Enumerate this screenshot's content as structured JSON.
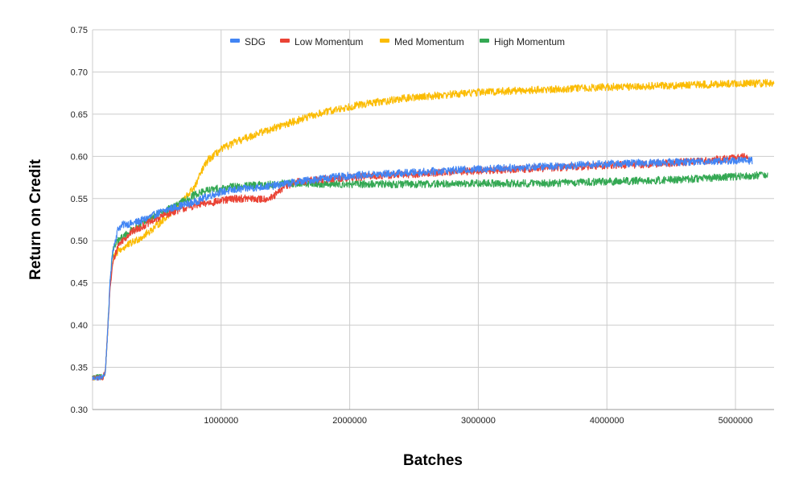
{
  "chart_data": {
    "type": "line",
    "xlabel": "Batches",
    "ylabel": "Return on Credit",
    "xlim": [
      0,
      5300000
    ],
    "ylim": [
      0.3,
      0.75
    ],
    "x_ticks": [
      1000000,
      2000000,
      3000000,
      4000000,
      5000000
    ],
    "x_tick_labels": [
      "1000000",
      "2000000",
      "3000000",
      "4000000",
      "5000000"
    ],
    "y_ticks": [
      0.3,
      0.35,
      0.4,
      0.45,
      0.5,
      0.55,
      0.6,
      0.65,
      0.7,
      0.75
    ],
    "y_tick_labels": [
      "0.30",
      "0.35",
      "0.40",
      "0.45",
      "0.50",
      "0.55",
      "0.60",
      "0.65",
      "0.70",
      "0.75"
    ],
    "grid": true,
    "legend_position": "top-center",
    "series": [
      {
        "name": "SDG",
        "color": "#4285f4",
        "x": [
          0,
          80000,
          100000,
          120000,
          140000,
          160000,
          200000,
          250000,
          300000,
          400000,
          500000,
          600000,
          700000,
          800000,
          900000,
          1000000,
          1200000,
          1400000,
          1600000,
          1800000,
          2000000,
          2500000,
          3000000,
          3500000,
          4000000,
          4500000,
          5000000,
          5130000
        ],
        "y": [
          0.337,
          0.338,
          0.345,
          0.4,
          0.46,
          0.49,
          0.515,
          0.52,
          0.52,
          0.525,
          0.532,
          0.538,
          0.542,
          0.546,
          0.553,
          0.558,
          0.562,
          0.565,
          0.57,
          0.574,
          0.577,
          0.581,
          0.585,
          0.588,
          0.591,
          0.593,
          0.595,
          0.595
        ]
      },
      {
        "name": "Low Momentum",
        "color": "#ea4335",
        "x": [
          0,
          80000,
          100000,
          120000,
          140000,
          160000,
          200000,
          250000,
          300000,
          400000,
          500000,
          600000,
          700000,
          800000,
          900000,
          1000000,
          1100000,
          1200000,
          1300000,
          1400000,
          1500000,
          1600000,
          1800000,
          2000000,
          2500000,
          3000000,
          3500000,
          4000000,
          4500000,
          5000000,
          5100000
        ],
        "y": [
          0.337,
          0.338,
          0.345,
          0.4,
          0.45,
          0.475,
          0.495,
          0.503,
          0.51,
          0.518,
          0.526,
          0.533,
          0.538,
          0.542,
          0.545,
          0.547,
          0.55,
          0.55,
          0.549,
          0.551,
          0.565,
          0.57,
          0.573,
          0.575,
          0.579,
          0.583,
          0.586,
          0.589,
          0.592,
          0.598,
          0.6
        ]
      },
      {
        "name": "Med Momentum",
        "color": "#fbbc04",
        "x": [
          0,
          80000,
          100000,
          120000,
          140000,
          160000,
          200000,
          300000,
          400000,
          500000,
          600000,
          700000,
          800000,
          850000,
          900000,
          1000000,
          1100000,
          1200000,
          1300000,
          1400000,
          1500000,
          1600000,
          1800000,
          2000000,
          2200000,
          2500000,
          3000000,
          3500000,
          4000000,
          4500000,
          5000000,
          5300000
        ],
        "y": [
          0.337,
          0.338,
          0.345,
          0.4,
          0.455,
          0.478,
          0.488,
          0.497,
          0.506,
          0.518,
          0.532,
          0.547,
          0.565,
          0.583,
          0.596,
          0.608,
          0.616,
          0.622,
          0.628,
          0.633,
          0.638,
          0.643,
          0.652,
          0.659,
          0.664,
          0.67,
          0.676,
          0.679,
          0.682,
          0.684,
          0.686,
          0.687
        ]
      },
      {
        "name": "High Momentum",
        "color": "#34a853",
        "x": [
          0,
          80000,
          100000,
          120000,
          140000,
          160000,
          200000,
          300000,
          400000,
          500000,
          600000,
          700000,
          800000,
          900000,
          1000000,
          1100000,
          1200000,
          1500000,
          2000000,
          2500000,
          3000000,
          3500000,
          4000000,
          4500000,
          5000000,
          5250000
        ],
        "y": [
          0.338,
          0.339,
          0.345,
          0.4,
          0.46,
          0.49,
          0.5,
          0.512,
          0.522,
          0.53,
          0.538,
          0.546,
          0.555,
          0.56,
          0.562,
          0.564,
          0.565,
          0.568,
          0.567,
          0.567,
          0.568,
          0.568,
          0.57,
          0.572,
          0.576,
          0.578
        ]
      }
    ]
  }
}
